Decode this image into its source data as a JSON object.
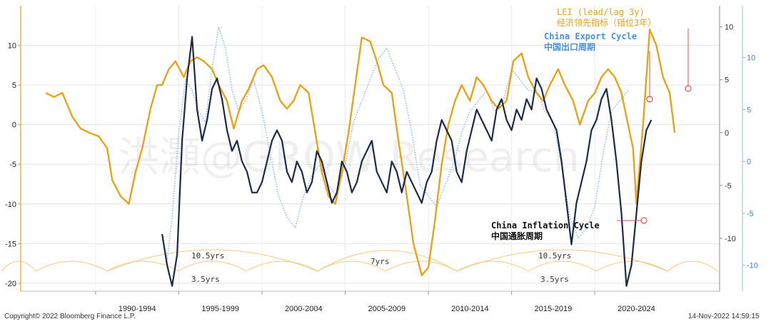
{
  "footer": {
    "copyright": "Copyright© 2022 Bloomberg Finance L.P.",
    "timestamp": "14-Nov-2022 14:59:15"
  },
  "watermark": "洪灝@GROW Research",
  "colors": {
    "lei": "#e8a317",
    "export": "#8fbbe8",
    "inflation": "#1c2a4a",
    "cycle": "#f0c36a",
    "marker": "#d9534f"
  },
  "labels": {
    "lei_en": "LEI (lead/lag 3y)",
    "lei_cn": "经济领先指标（错位3年）",
    "export_en": "China Export Cycle",
    "export_cn": "中国出口周期",
    "inflation_en": "China Inflation Cycle",
    "inflation_cn": "中国通胀周期",
    "cycle_10_left": "10.5yrs",
    "cycle_35_left": "3.5yrs",
    "cycle_7": "7yrs",
    "cycle_10_right": "10.5yrs",
    "cycle_35_right": "3.5yrs"
  },
  "chart_data": {
    "type": "line",
    "xlabel": "",
    "ylabel": "",
    "x_tick_labels": [
      "1990-1994",
      "1995-1999",
      "2000-2004",
      "2005-2009",
      "2010-2014",
      "2015-2019",
      "2020-2024"
    ],
    "xlim": [
      1985.5,
      2027.5
    ],
    "left_axis": {
      "ylim": [
        -21,
        15
      ],
      "ticks": [
        10,
        5,
        0,
        -5,
        -10,
        -15,
        -20
      ]
    },
    "right_axis_1": {
      "ylim": [
        -15,
        12
      ],
      "ticks": [
        10,
        5,
        0,
        -5,
        -10
      ]
    },
    "right_axis_2": {
      "ylim": [
        -12.5,
        15
      ],
      "ticks": [
        10,
        5,
        0,
        -5,
        -10
      ]
    },
    "series": [
      {
        "name": "LEI (lead/lag 3y)",
        "axis": "left",
        "x": [
          1987.0,
          1987.5,
          1988.0,
          1988.6,
          1989.1,
          1989.6,
          1990.2,
          1990.7,
          1991.0,
          1991.5,
          1992.0,
          1992.4,
          1992.8,
          1993.3,
          1993.7,
          1994.0,
          1994.4,
          1994.8,
          1995.3,
          1995.7,
          1996.1,
          1996.5,
          1997.0,
          1997.4,
          1997.9,
          1998.3,
          1998.8,
          1999.2,
          1999.7,
          2000.1,
          2000.6,
          2001.1,
          2001.5,
          2001.9,
          2002.3,
          2002.8,
          2003.2,
          2003.6,
          2004.0,
          2004.4,
          2004.8,
          2005.2,
          2005.6,
          2006.0,
          2006.5,
          2006.9,
          2007.3,
          2007.8,
          2008.2,
          2008.7,
          2009.1,
          2009.6,
          2010.0,
          2010.4,
          2010.8,
          2011.2,
          2011.6,
          2012.0,
          2012.5,
          2012.9,
          2013.3,
          2013.8,
          2014.2,
          2014.7,
          2015.1,
          2015.6,
          2016.0,
          2016.5,
          2016.9,
          2017.3,
          2017.8,
          2018.2,
          2018.7,
          2019.1,
          2019.6,
          2020.0,
          2020.4,
          2020.8,
          2021.2,
          2021.6,
          2022.0,
          2022.3,
          2022.5,
          2022.7,
          2022.9,
          2023.3,
          2023.7,
          2024.1,
          2024.5,
          2024.8
        ],
        "y": [
          4,
          3.5,
          4,
          1,
          -0.5,
          -1,
          -1.5,
          -3,
          -7,
          -9,
          -10,
          -6,
          -3,
          2,
          5,
          5,
          7,
          8,
          6,
          8,
          8.5,
          8,
          7,
          5,
          3,
          -0.5,
          3,
          4.5,
          7,
          7.5,
          6,
          3,
          2,
          3,
          5,
          4,
          -1,
          -6,
          -9,
          -10,
          -6,
          -1,
          5,
          11,
          10.5,
          8,
          5,
          4,
          -2,
          -9,
          -15,
          -19,
          -18,
          -12,
          -5,
          0,
          3,
          5,
          3,
          6,
          5,
          3,
          2,
          3,
          8,
          9,
          6,
          4,
          3,
          5,
          7,
          5,
          3,
          0,
          3,
          4,
          6,
          7,
          6,
          4,
          0,
          -3,
          -10,
          -5,
          0,
          12,
          10,
          6,
          4,
          -1
        ]
      },
      {
        "name": "China Export Cycle",
        "axis": "right_1",
        "x": [
          1994.0,
          1994.3,
          1994.6,
          1995.0,
          1995.4,
          1995.8,
          1996.2,
          1996.6,
          1997.0,
          1997.4,
          1997.8,
          1998.2,
          1998.6,
          1999.0,
          1999.5,
          2000.0,
          2000.5,
          2001.0,
          2001.5,
          2002.0,
          2002.5,
          2003.0,
          2003.5,
          2004.0,
          2004.5,
          2005.0,
          2005.5,
          2006.0,
          2006.5,
          2007.0,
          2007.5,
          2008.0,
          2008.5,
          2009.0,
          2009.5,
          2010.0,
          2010.5,
          2011.0,
          2011.5,
          2012.0,
          2012.5,
          2013.0,
          2013.5,
          2014.0,
          2014.5,
          2015.0,
          2015.5,
          2016.0,
          2016.5,
          2017.0,
          2017.5,
          2018.0,
          2018.5,
          2019.0,
          2019.5,
          2020.0,
          2020.5,
          2021.0,
          2021.5,
          2022.0
        ],
        "y": [
          -10,
          -12,
          -8,
          0,
          5,
          4,
          2,
          1,
          6,
          10,
          8,
          4,
          2,
          3,
          5,
          2,
          -2,
          -6,
          -8,
          -9,
          -6,
          -4,
          -3,
          -5,
          -6,
          -3,
          1,
          3,
          5,
          7,
          8,
          6,
          4,
          0,
          -5,
          -6,
          -7,
          -5,
          -3,
          0,
          2,
          3,
          4,
          2,
          3,
          6,
          5,
          4,
          4,
          2,
          1,
          -3,
          -8,
          -10,
          -9,
          -7,
          -2,
          2,
          3,
          4
        ]
      },
      {
        "name": "China Inflation Cycle",
        "axis": "right_2",
        "x": [
          1994.0,
          1994.3,
          1994.6,
          1994.9,
          1995.2,
          1995.5,
          1995.8,
          1996.1,
          1996.4,
          1996.7,
          1997.0,
          1997.3,
          1997.6,
          1997.9,
          1998.2,
          1998.5,
          1998.8,
          1999.1,
          1999.4,
          1999.7,
          2000.0,
          2000.3,
          2000.6,
          2000.9,
          2001.2,
          2001.5,
          2001.8,
          2002.1,
          2002.4,
          2002.7,
          2003.0,
          2003.3,
          2003.6,
          2003.9,
          2004.2,
          2004.5,
          2004.8,
          2005.1,
          2005.4,
          2005.7,
          2006.0,
          2006.3,
          2006.6,
          2006.9,
          2007.2,
          2007.5,
          2007.8,
          2008.1,
          2008.4,
          2008.7,
          2009.0,
          2009.3,
          2009.6,
          2009.9,
          2010.2,
          2010.5,
          2010.8,
          2011.1,
          2011.4,
          2011.7,
          2012.0,
          2012.3,
          2012.6,
          2012.9,
          2013.2,
          2013.5,
          2013.8,
          2014.1,
          2014.4,
          2014.7,
          2015.0,
          2015.3,
          2015.6,
          2015.9,
          2016.2,
          2016.5,
          2016.8,
          2017.1,
          2017.4,
          2017.7,
          2018.0,
          2018.3,
          2018.6,
          2018.9,
          2019.2,
          2019.5,
          2019.8,
          2020.1,
          2020.4,
          2020.7,
          2021.0,
          2021.3,
          2021.6,
          2021.9,
          2022.2,
          2022.5,
          2022.8,
          2023.1,
          2023.4
        ],
        "y": [
          -7,
          -10,
          -12,
          -9,
          2,
          8,
          12,
          5,
          2,
          4,
          7,
          8,
          6,
          3,
          1,
          2,
          0,
          -1,
          -3,
          -3,
          -2,
          0,
          2,
          3,
          2,
          -1,
          -2,
          0,
          -1,
          -3,
          -2,
          1,
          0,
          -2,
          -4,
          -3,
          0,
          -1,
          -3,
          -2,
          0,
          1,
          2,
          -1,
          -2,
          -3,
          0,
          -1,
          -3,
          -1,
          -2,
          -3,
          -4,
          -2,
          -1,
          2,
          4,
          3,
          2,
          -1,
          -2,
          1,
          3,
          5,
          4,
          3,
          2,
          5,
          6,
          4,
          3,
          5,
          4,
          6,
          5,
          8,
          7,
          5,
          4,
          3,
          0,
          -4,
          -8,
          -4,
          -2,
          0,
          3,
          4,
          6,
          7,
          4,
          0,
          -5,
          -12,
          -10,
          -5,
          0,
          3,
          4
        ]
      }
    ],
    "annotations": [
      "10.5yrs",
      "3.5yrs",
      "7yrs",
      "10.5yrs",
      "3.5yrs"
    ]
  }
}
